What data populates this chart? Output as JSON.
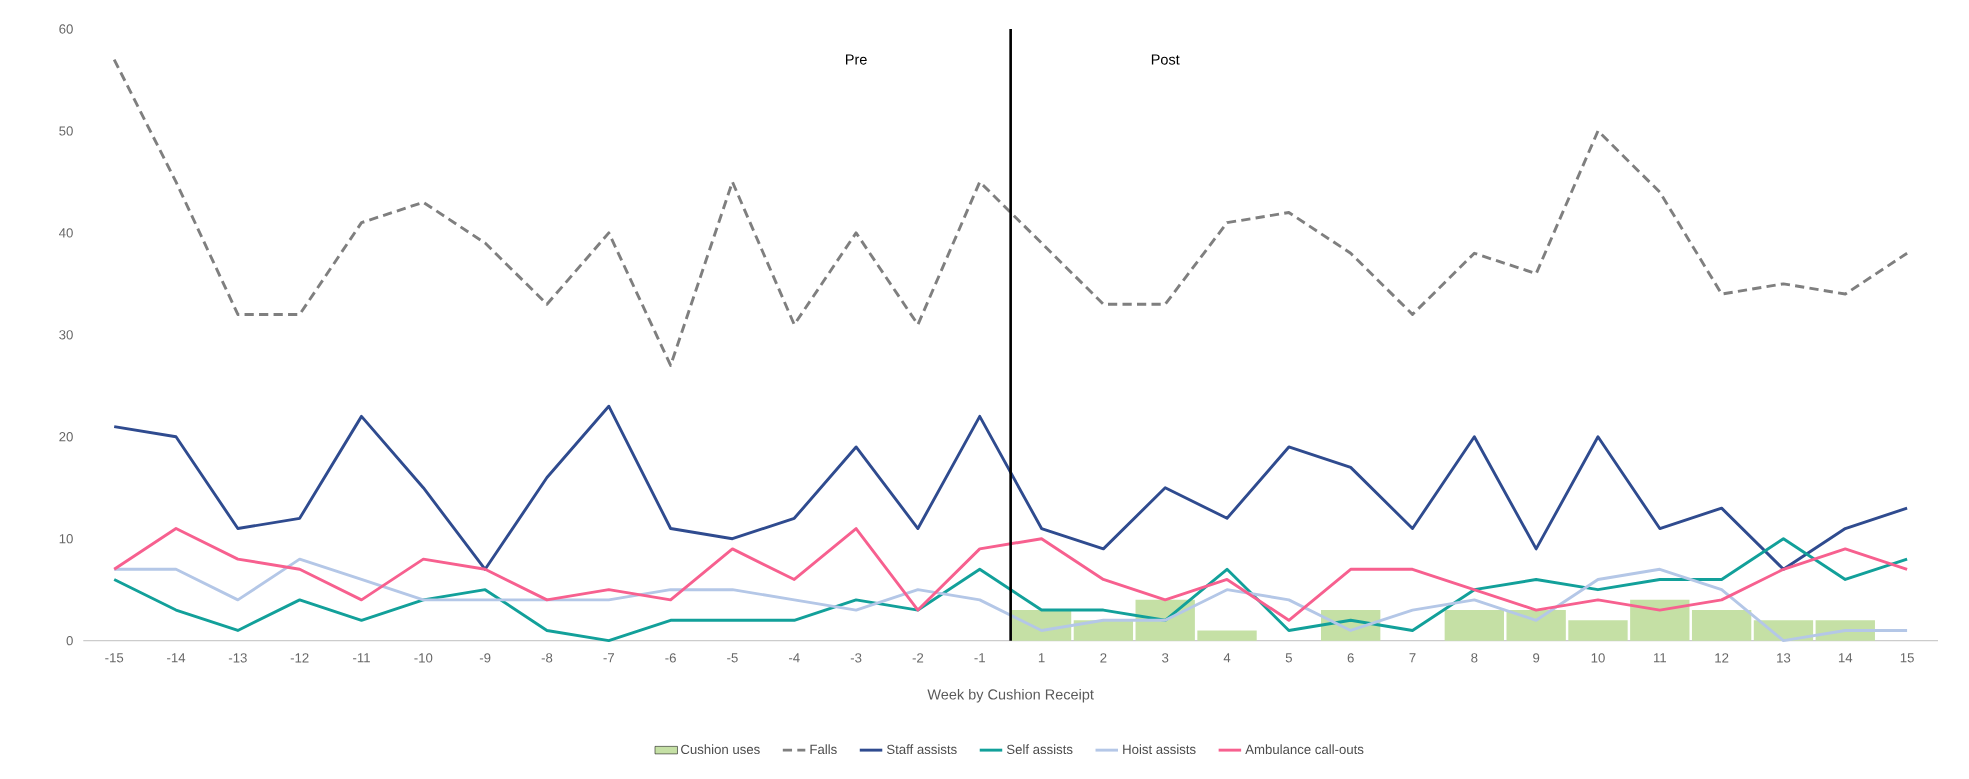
{
  "chart_data": {
    "type": "line",
    "xlabel": "Week by Cushion Receipt",
    "categories": [
      "-15",
      "-14",
      "-13",
      "-12",
      "-11",
      "-10",
      "-9",
      "-8",
      "-7",
      "-6",
      "-5",
      "-4",
      "-3",
      "-2",
      "-1",
      "1",
      "2",
      "3",
      "4",
      "5",
      "6",
      "7",
      "8",
      "9",
      "10",
      "11",
      "12",
      "13",
      "14",
      "15"
    ],
    "series": [
      {
        "name": "Cushion uses",
        "type": "bar",
        "color": "#c5e0a5",
        "values": [
          null,
          null,
          null,
          null,
          null,
          null,
          null,
          null,
          null,
          null,
          null,
          null,
          null,
          null,
          null,
          3,
          2,
          4,
          1,
          null,
          3,
          null,
          3,
          3,
          2,
          4,
          3,
          2,
          2,
          null
        ]
      },
      {
        "name": "Falls",
        "line_style": "dashed",
        "color": "#7f7f7f",
        "values": [
          57,
          45,
          32,
          32,
          41,
          43,
          39,
          33,
          40,
          27,
          45,
          31,
          40,
          31,
          45,
          39,
          33,
          33,
          41,
          42,
          38,
          32,
          38,
          36,
          50,
          44,
          34,
          35,
          34,
          38
        ]
      },
      {
        "name": "Staff assists",
        "color": "#2f4b8f",
        "values": [
          21,
          20,
          11,
          12,
          22,
          15,
          7,
          16,
          23,
          11,
          10,
          12,
          19,
          11,
          22,
          11,
          9,
          15,
          12,
          19,
          17,
          11,
          20,
          9,
          20,
          11,
          13,
          7,
          11,
          13
        ]
      },
      {
        "name": "Self assists",
        "color": "#12a09a",
        "values": [
          6,
          3,
          1,
          4,
          2,
          4,
          5,
          1,
          0,
          2,
          2,
          2,
          4,
          3,
          7,
          3,
          3,
          2,
          7,
          1,
          2,
          1,
          5,
          6,
          5,
          6,
          6,
          10,
          6,
          8
        ]
      },
      {
        "name": "Hoist assists",
        "color": "#b4c7e7",
        "values": [
          7,
          7,
          4,
          8,
          6,
          4,
          4,
          4,
          4,
          5,
          5,
          4,
          3,
          5,
          4,
          1,
          2,
          2,
          5,
          4,
          1,
          3,
          4,
          2,
          6,
          7,
          5,
          0,
          1,
          1
        ]
      },
      {
        "name": "Ambulance call-outs",
        "color": "#f7608f",
        "values": [
          7,
          11,
          8,
          7,
          4,
          8,
          7,
          4,
          5,
          4,
          9,
          6,
          11,
          3,
          9,
          10,
          6,
          4,
          6,
          2,
          7,
          7,
          5,
          3,
          4,
          3,
          4,
          7,
          9,
          7
        ]
      }
    ],
    "ylim": [
      0,
      60
    ],
    "yticks": [
      0,
      10,
      20,
      30,
      40,
      50,
      60
    ],
    "annotations": [
      "Pre",
      "Post"
    ],
    "legend": "bottom",
    "marker": "none"
  }
}
